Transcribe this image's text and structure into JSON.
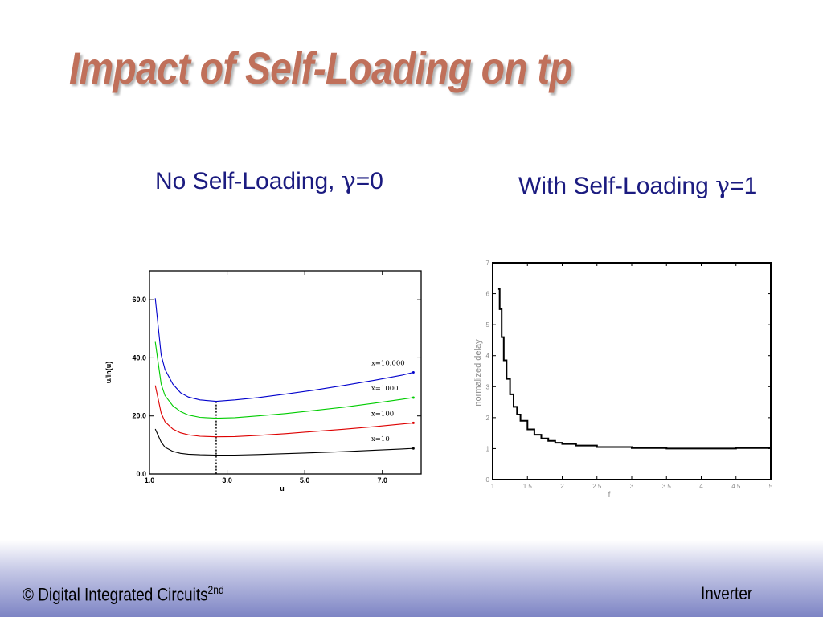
{
  "title": "Impact of Self-Loading on tp",
  "subtitles": {
    "left_prefix": "No Self-Loading, ",
    "left_greek": "γ",
    "left_suffix": "=0",
    "right_prefix": "With Self-Loading ",
    "right_greek": "γ",
    "right_suffix": "=1"
  },
  "footer": {
    "left": "© Digital Integrated Circuits",
    "left_sup": "2nd",
    "right": "Inverter"
  },
  "colors": {
    "title": "#c0705a",
    "subtitle": "#1b1b80",
    "x10000": "#0000cc",
    "x1000": "#00cc00",
    "x100": "#dd0000",
    "x10": "#000000"
  },
  "chart_data": [
    {
      "type": "line",
      "xlabel": "u",
      "ylabel": "u/ln(u)",
      "xlim": [
        1.0,
        8.0
      ],
      "ylim": [
        0.0,
        70.0
      ],
      "xticks": [
        "1.0",
        "3.0",
        "5.0",
        "7.0"
      ],
      "yticks": [
        "0.0",
        "20.0",
        "40.0",
        "60.0"
      ],
      "xtick_values": [
        1.0,
        3.0,
        5.0,
        7.0
      ],
      "ytick_values": [
        0.0,
        20.0,
        40.0,
        60.0
      ],
      "vline_x": 2.718,
      "series": [
        {
          "name": "x=10,000",
          "color": "#0000cc",
          "x": [
            1.15,
            1.3,
            1.4,
            1.6,
            1.8,
            2.0,
            2.3,
            2.718,
            3.2,
            3.8,
            4.5,
            5.2,
            6.0,
            6.8,
            7.5,
            7.8
          ],
          "y": [
            60.5,
            41,
            36,
            31,
            28,
            26.5,
            25.5,
            25.0,
            25.5,
            26.3,
            27.5,
            28.8,
            30.5,
            32.3,
            34.0,
            35.0
          ]
        },
        {
          "name": "x=1000",
          "color": "#00cc00",
          "x": [
            1.15,
            1.3,
            1.4,
            1.6,
            1.8,
            2.0,
            2.3,
            2.718,
            3.2,
            3.8,
            4.5,
            5.2,
            6.0,
            6.8,
            7.5,
            7.8
          ],
          "y": [
            45.5,
            31,
            27,
            23.5,
            21.5,
            20.3,
            19.5,
            19.2,
            19.4,
            20.0,
            20.8,
            21.8,
            23.0,
            24.4,
            25.7,
            26.3
          ]
        },
        {
          "name": "x=100",
          "color": "#dd0000",
          "x": [
            1.15,
            1.3,
            1.4,
            1.6,
            1.8,
            2.0,
            2.3,
            2.718,
            3.2,
            3.8,
            4.5,
            5.2,
            6.0,
            6.8,
            7.5,
            7.8
          ],
          "y": [
            30.5,
            21,
            18,
            15.5,
            14.2,
            13.5,
            13.0,
            12.8,
            12.9,
            13.3,
            13.9,
            14.6,
            15.4,
            16.3,
            17.2,
            17.6
          ]
        },
        {
          "name": "x=10",
          "color": "#000000",
          "x": [
            1.15,
            1.3,
            1.4,
            1.6,
            1.8,
            2.0,
            2.3,
            2.718,
            3.2,
            3.8,
            4.5,
            5.2,
            6.0,
            6.8,
            7.5,
            7.8
          ],
          "y": [
            15.5,
            11,
            9.2,
            7.8,
            7.1,
            6.8,
            6.6,
            6.5,
            6.5,
            6.7,
            7.0,
            7.3,
            7.7,
            8.2,
            8.6,
            8.8
          ]
        }
      ]
    },
    {
      "type": "line",
      "xlabel": "f",
      "ylabel": "normalized delay",
      "xlim": [
        1,
        5
      ],
      "ylim": [
        0,
        7
      ],
      "xticks": [
        "1",
        "1.5",
        "2",
        "2.5",
        "3",
        "3.5",
        "4",
        "4.5",
        "5"
      ],
      "yticks": [
        "0",
        "1",
        "2",
        "3",
        "4",
        "5",
        "6",
        "7"
      ],
      "xtick_values": [
        1,
        1.5,
        2,
        2.5,
        3,
        3.5,
        4,
        4.5,
        5
      ],
      "ytick_values": [
        0,
        1,
        2,
        3,
        4,
        5,
        6,
        7
      ],
      "series": [
        {
          "color": "#000000",
          "x": [
            1.08,
            1.1,
            1.13,
            1.16,
            1.2,
            1.25,
            1.3,
            1.35,
            1.4,
            1.5,
            1.6,
            1.7,
            1.8,
            1.9,
            2.0,
            2.2,
            2.5,
            3.0,
            3.5,
            4.0,
            4.5,
            5.0
          ],
          "y": [
            6.15,
            5.5,
            4.6,
            3.85,
            3.25,
            2.75,
            2.35,
            2.1,
            1.9,
            1.62,
            1.45,
            1.33,
            1.25,
            1.19,
            1.15,
            1.1,
            1.05,
            1.02,
            1.0,
            1.0,
            1.02,
            1.03
          ]
        }
      ]
    }
  ]
}
